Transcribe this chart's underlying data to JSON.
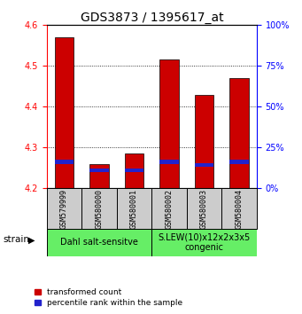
{
  "title": "GDS3873 / 1395617_at",
  "samples": [
    "GSM579999",
    "GSM580000",
    "GSM580001",
    "GSM580002",
    "GSM580003",
    "GSM580004"
  ],
  "transformed_counts": [
    4.57,
    4.26,
    4.285,
    4.515,
    4.43,
    4.47
  ],
  "percentile_values": [
    4.265,
    4.245,
    4.245,
    4.265,
    4.258,
    4.265
  ],
  "ylim_left": [
    4.2,
    4.6
  ],
  "ylim_right": [
    0,
    100
  ],
  "yticks_left": [
    4.2,
    4.3,
    4.4,
    4.5,
    4.6
  ],
  "yticks_right": [
    0,
    25,
    50,
    75,
    100
  ],
  "bar_bottom": 4.2,
  "bar_width": 0.55,
  "red_color": "#cc0000",
  "blue_color": "#2222cc",
  "group1_label": "Dahl salt-sensitve",
  "group2_label": "S.LEW(10)x12x2x3x5\ncongenic",
  "group_bg_color": "#66ee66",
  "tick_bg_color": "#cccccc",
  "legend_red": "transformed count",
  "legend_blue": "percentile rank within the sample",
  "strain_label": "strain",
  "title_fontsize": 10,
  "tick_fontsize": 7,
  "label_fontsize": 7
}
